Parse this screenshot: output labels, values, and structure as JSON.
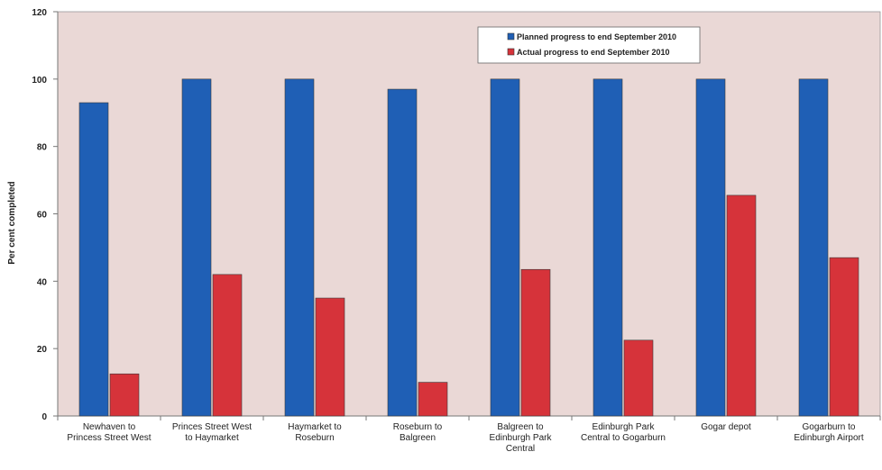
{
  "chart_data": {
    "type": "bar",
    "title": "",
    "xlabel": "",
    "ylabel": "Per cent completed",
    "ylim": [
      0,
      120
    ],
    "yticks": [
      "0",
      "20",
      "40",
      "60",
      "80",
      "100",
      "120"
    ],
    "categories": [
      [
        "Newhaven to",
        "Princess Street West"
      ],
      [
        "Princes Street West",
        "to Haymarket"
      ],
      [
        "Haymarket to",
        "Roseburn"
      ],
      [
        "Roseburn to",
        "Balgreen"
      ],
      [
        "Balgreen to",
        "Edinburgh Park",
        "Central"
      ],
      [
        "Edinburgh Park",
        "Central to Gogarburn"
      ],
      [
        "Gogar depot"
      ],
      [
        "Gogarburn to",
        "Edinburgh Airport"
      ]
    ],
    "series": [
      {
        "name": "Planned progress to end September 2010",
        "color": "#1f5fb5",
        "values": [
          93,
          100,
          100,
          97,
          100,
          100,
          100,
          100
        ]
      },
      {
        "name": "Actual progress to end September 2010",
        "color": "#d6333a",
        "values": [
          12.5,
          42,
          35,
          10,
          43.5,
          22.5,
          65.5,
          47
        ]
      }
    ],
    "grid": false,
    "legend_position": "top-right",
    "plot_background": "#ead8d6",
    "axis_color": "#777777"
  }
}
